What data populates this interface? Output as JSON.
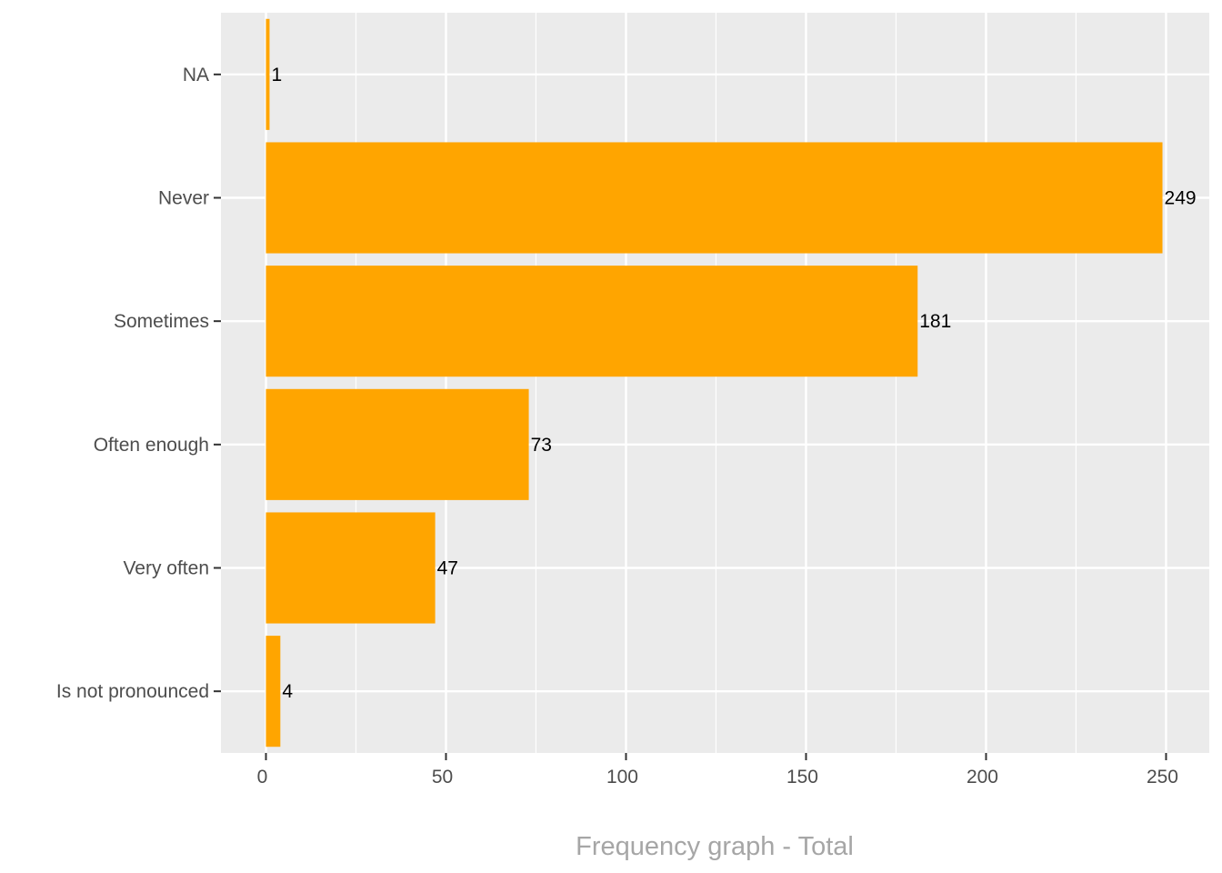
{
  "chart_data": {
    "type": "bar",
    "orientation": "horizontal",
    "categories": [
      "NA",
      "Never",
      "Sometimes",
      "Often enough",
      "Very often",
      "Is not pronounced"
    ],
    "values": [
      1,
      249,
      181,
      73,
      47,
      4
    ],
    "data_labels": [
      "1",
      "249",
      "181",
      "73",
      "47",
      "4"
    ],
    "xlabel": "Frequency graph - Total",
    "ylabel": "",
    "xlim": [
      -12.5,
      262
    ],
    "xticks": [
      0,
      50,
      100,
      150,
      200,
      250
    ],
    "xtick_labels": [
      "0",
      "50",
      "100",
      "150",
      "200",
      "250"
    ],
    "grid": true,
    "legend": "none",
    "colors": {
      "bar": "#FFA500",
      "panel": "#EBEBEB",
      "grid": "#FFFFFF",
      "tick_label": "#4D4D4D",
      "axis_title": "#A6A6A6"
    }
  }
}
